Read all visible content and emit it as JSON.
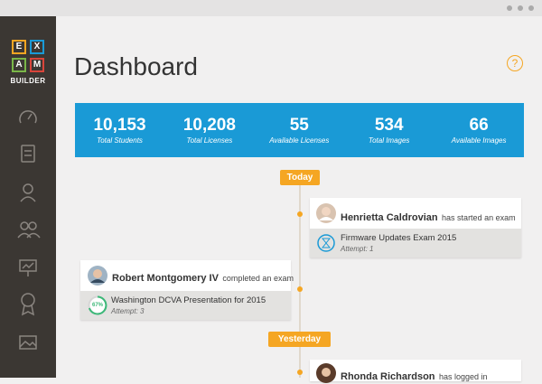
{
  "logo": {
    "letters": [
      "E",
      "X",
      "A",
      "M"
    ],
    "subtitle": "BUILDER"
  },
  "header": {
    "title": "Dashboard",
    "help": "?"
  },
  "stats": [
    {
      "value": "10,153",
      "label": "Total Students"
    },
    {
      "value": "10,208",
      "label": "Total Licenses"
    },
    {
      "value": "55",
      "label": "Available Licenses"
    },
    {
      "value": "534",
      "label": "Total Images"
    },
    {
      "value": "66",
      "label": "Available Images"
    }
  ],
  "timeline": {
    "badges": [
      "Today",
      "Yesterday"
    ],
    "events": [
      {
        "name": "Henrietta Caldrovian",
        "action": "has started an exam",
        "item": "Firmware Updates Exam 2015",
        "attempt": "Attempt: 1"
      },
      {
        "name": "Robert Montgomery IV",
        "action": "completed an exam",
        "item": "Washington DCVA Presentation for 2015",
        "attempt": "Attempt: 3",
        "progress": "67%"
      },
      {
        "name": "Rhonda Richardson",
        "action": "has logged in"
      }
    ]
  }
}
